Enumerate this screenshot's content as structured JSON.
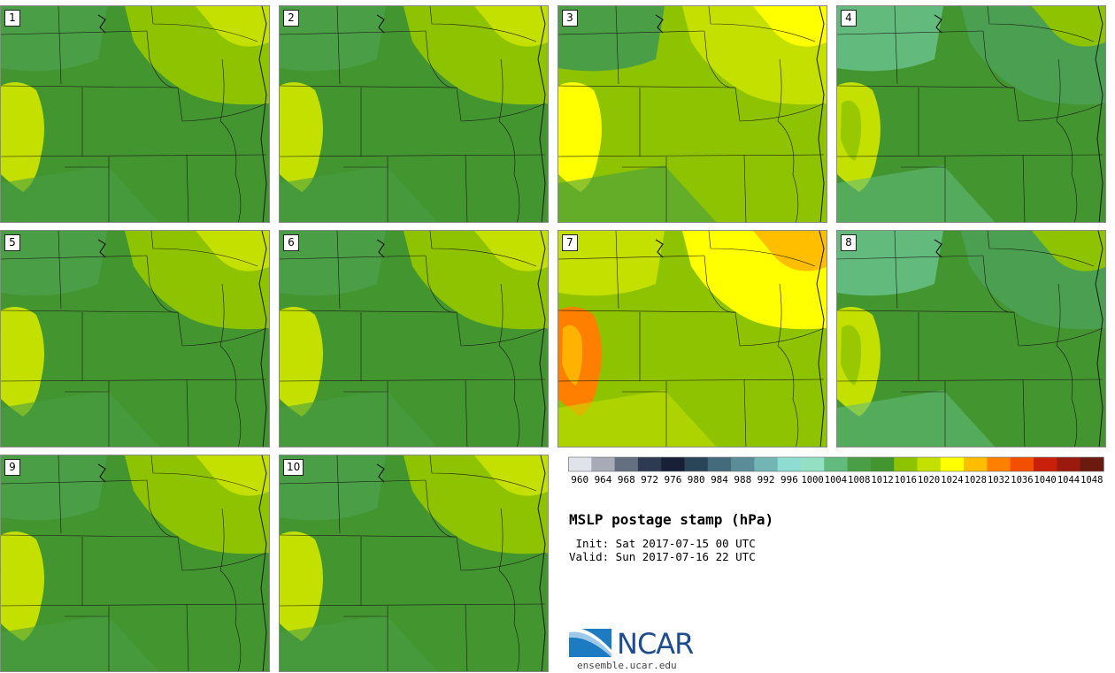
{
  "panels": [
    {
      "label": "1",
      "regime": "mid"
    },
    {
      "label": "2",
      "regime": "mid"
    },
    {
      "label": "3",
      "regime": "high"
    },
    {
      "label": "4",
      "regime": "low"
    },
    {
      "label": "5",
      "regime": "mid"
    },
    {
      "label": "6",
      "regime": "mid"
    },
    {
      "label": "7",
      "regime": "very-high"
    },
    {
      "label": "8",
      "regime": "low"
    },
    {
      "label": "9",
      "regime": "mid"
    },
    {
      "label": "10",
      "regime": "mid"
    }
  ],
  "colorbar": {
    "labels": [
      "960",
      "964",
      "968",
      "972",
      "976",
      "980",
      "984",
      "988",
      "992",
      "996",
      "1000",
      "1004",
      "1008",
      "1012",
      "1016",
      "1020",
      "1024",
      "1028",
      "1032",
      "1036",
      "1040",
      "1044",
      "1048"
    ],
    "colors": [
      "#e1e3ea",
      "#a8aab8",
      "#646f82",
      "#2e3a52",
      "#182038",
      "#2a4458",
      "#436b7c",
      "#5a8d98",
      "#73b5b4",
      "#8fdcd2",
      "#93e0c2",
      "#62ba7c",
      "#4a9e45",
      "#43952f",
      "#8dc300",
      "#c3e000",
      "#ffff00",
      "#ffbf00",
      "#ff8000",
      "#f25000",
      "#c8200a",
      "#9a1b0e",
      "#6b1a10"
    ]
  },
  "title": "MSLP postage stamp (hPa)",
  "init": " Init: Sat 2017-07-15 00 UTC",
  "valid": "Valid: Sun 2017-07-16 22 UTC",
  "logo": {
    "text": "NCAR",
    "url": "ensemble.ucar.edu"
  }
}
